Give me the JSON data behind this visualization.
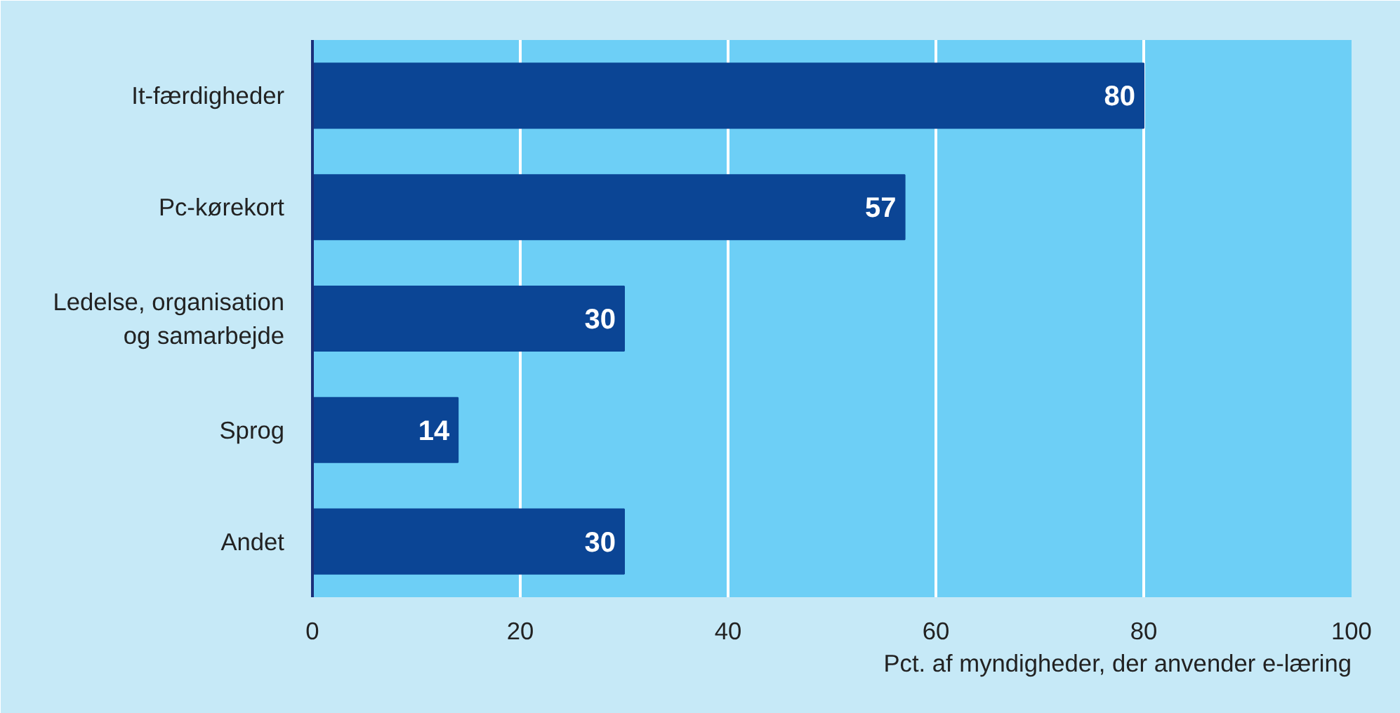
{
  "chart_data": {
    "type": "bar",
    "orientation": "horizontal",
    "xlabel": "Pct. af myndigheder, der anvender e-læring",
    "categories": [
      "It-færdigheder",
      "Pc-kørekort",
      "Ledelse, organisation\nog samarbejde",
      "Sprog",
      "Andet"
    ],
    "values": [
      80,
      57,
      30,
      14,
      30
    ],
    "color": "#0b4595",
    "data_labels": true,
    "xlim": [
      0,
      100
    ],
    "xticks": [
      0,
      20,
      40,
      60,
      80,
      100
    ],
    "grid": "x"
  }
}
